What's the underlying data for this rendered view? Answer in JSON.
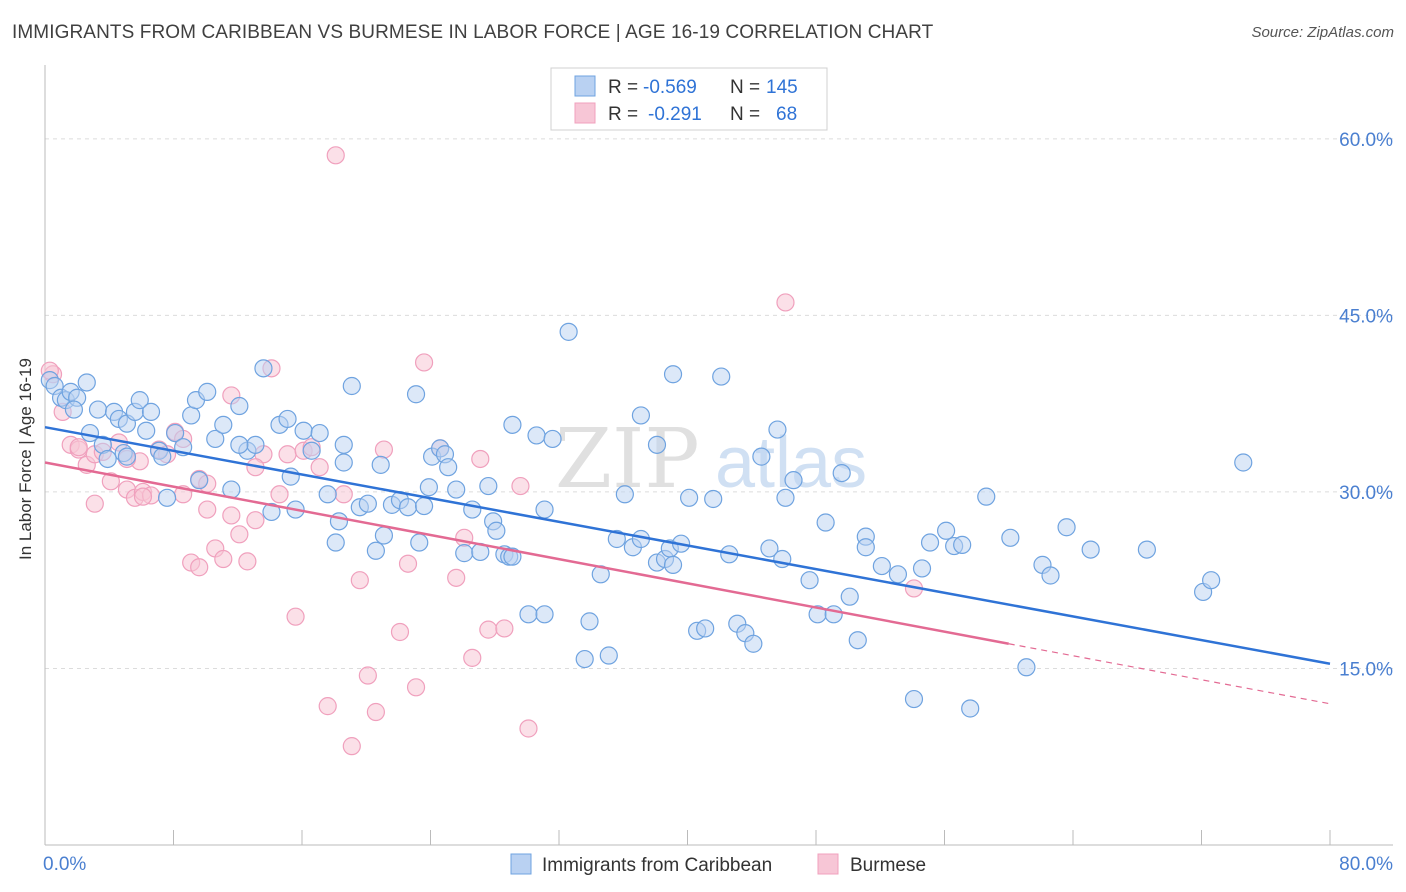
{
  "title": "IMMIGRANTS FROM CARIBBEAN VS BURMESE IN LABOR FORCE | AGE 16-19 CORRELATION CHART",
  "source": "Source: ZipAtlas.com",
  "watermark": "ZIPatlas",
  "colors": {
    "blue": "#6fa3e0",
    "blue_line": "#2f73d6",
    "pink": "#f0a0bd",
    "pink_line": "#e36a93",
    "tick_text": "#4a7fd0"
  },
  "legend": {
    "row1": {
      "r_label": "R =",
      "r_value": "-0.569",
      "n_label": "N =",
      "n_value": "145"
    },
    "row2": {
      "r_label": "R =",
      "r_value": "-0.291",
      "n_label": "N =",
      "n_value": "68"
    }
  },
  "bottom_legend": {
    "blue": "Immigrants from Caribbean",
    "pink": "Burmese"
  },
  "chart_data": {
    "type": "scatter",
    "title": "IMMIGRANTS FROM CARIBBEAN VS BURMESE IN LABOR FORCE | AGE 16-19 CORRELATION CHART",
    "xlabel": "",
    "ylabel": "In Labor Force | Age 16-19",
    "xlim": [
      0,
      80
    ],
    "ylim": [
      0,
      65
    ],
    "x_tick_labels": [
      "0.0%",
      "80.0%"
    ],
    "y_ticks": [
      15,
      30,
      45,
      60
    ],
    "y_tick_labels": [
      "15.0%",
      "30.0%",
      "45.0%",
      "60.0%"
    ],
    "grid": true,
    "legend_position": "top-center",
    "series": [
      {
        "name": "Immigrants from Caribbean",
        "r": -0.569,
        "n": 145,
        "trend": {
          "x0": 0,
          "y0": 35.5,
          "x1": 80,
          "y1": 15.4
        },
        "points": [
          [
            0.3,
            39.5
          ],
          [
            0.6,
            39
          ],
          [
            1,
            38
          ],
          [
            1.3,
            37.8
          ],
          [
            1.6,
            38.5
          ],
          [
            2,
            38
          ],
          [
            2.6,
            39.3
          ],
          [
            3.3,
            37
          ],
          [
            1.8,
            37
          ],
          [
            2.8,
            35
          ],
          [
            3.6,
            34
          ],
          [
            4.3,
            36.8
          ],
          [
            4.6,
            36.2
          ],
          [
            5.1,
            35.8
          ],
          [
            5.6,
            36.8
          ],
          [
            5.9,
            37.8
          ],
          [
            6.3,
            35.2
          ],
          [
            6.6,
            36.8
          ],
          [
            7.1,
            33.5
          ],
          [
            7.3,
            33
          ],
          [
            3.9,
            32.8
          ],
          [
            4.9,
            33.3
          ],
          [
            7.6,
            29.5
          ],
          [
            8.1,
            35
          ],
          [
            8.6,
            33.8
          ],
          [
            9.1,
            36.5
          ],
          [
            9.4,
            37.8
          ],
          [
            10.1,
            38.5
          ],
          [
            9.6,
            31
          ],
          [
            10.6,
            34.5
          ],
          [
            11.1,
            35.7
          ],
          [
            11.6,
            30.2
          ],
          [
            12.1,
            37.3
          ],
          [
            12.6,
            33.5
          ],
          [
            13.1,
            34
          ],
          [
            13.6,
            40.5
          ],
          [
            14.1,
            28.3
          ],
          [
            14.6,
            35.7
          ],
          [
            15.1,
            36.2
          ],
          [
            15.3,
            31.3
          ],
          [
            15.6,
            28.5
          ],
          [
            16.1,
            35.2
          ],
          [
            16.6,
            33.5
          ],
          [
            17.1,
            35
          ],
          [
            17.6,
            29.8
          ],
          [
            18.1,
            25.7
          ],
          [
            18.3,
            27.5
          ],
          [
            18.6,
            34
          ],
          [
            19.1,
            39
          ],
          [
            19.6,
            28.7
          ],
          [
            20.1,
            29
          ],
          [
            20.6,
            25
          ],
          [
            20.9,
            32.3
          ],
          [
            21.1,
            26.3
          ],
          [
            21.6,
            28.9
          ],
          [
            22.1,
            29.3
          ],
          [
            22.6,
            28.7
          ],
          [
            23.1,
            38.3
          ],
          [
            23.3,
            25.7
          ],
          [
            23.9,
            30.4
          ],
          [
            24.1,
            33
          ],
          [
            24.6,
            33.7
          ],
          [
            24.9,
            33.2
          ],
          [
            25.1,
            32.1
          ],
          [
            25.6,
            30.2
          ],
          [
            26.1,
            24.8
          ],
          [
            26.6,
            28.5
          ],
          [
            27.1,
            24.9
          ],
          [
            27.6,
            30.5
          ],
          [
            27.9,
            27.5
          ],
          [
            28.1,
            26.7
          ],
          [
            28.6,
            24.7
          ],
          [
            28.9,
            24.5
          ],
          [
            29.1,
            35.7
          ],
          [
            30.1,
            19.6
          ],
          [
            30.6,
            34.8
          ],
          [
            31.1,
            28.5
          ],
          [
            31.6,
            34.5
          ],
          [
            32.6,
            43.6
          ],
          [
            33.6,
            15.8
          ],
          [
            33.9,
            19
          ],
          [
            34.6,
            23
          ],
          [
            35.1,
            16.1
          ],
          [
            35.6,
            26
          ],
          [
            36.1,
            29.8
          ],
          [
            36.6,
            25.3
          ],
          [
            37.1,
            26
          ],
          [
            38.1,
            24
          ],
          [
            38.6,
            24.3
          ],
          [
            38.9,
            25.2
          ],
          [
            39.1,
            23.8
          ],
          [
            39.6,
            25.6
          ],
          [
            40.1,
            29.5
          ],
          [
            40.6,
            18.2
          ],
          [
            41.1,
            18.4
          ],
          [
            41.6,
            29.4
          ],
          [
            42.1,
            39.8
          ],
          [
            42.6,
            24.7
          ],
          [
            43.1,
            18.8
          ],
          [
            43.6,
            18
          ],
          [
            44.1,
            17.1
          ],
          [
            44.6,
            33
          ],
          [
            45.1,
            25.2
          ],
          [
            45.6,
            35.3
          ],
          [
            45.9,
            24.3
          ],
          [
            46.6,
            31
          ],
          [
            47.6,
            22.5
          ],
          [
            48.1,
            19.6
          ],
          [
            48.6,
            27.4
          ],
          [
            49.1,
            19.6
          ],
          [
            49.6,
            31.6
          ],
          [
            50.1,
            21.1
          ],
          [
            50.6,
            17.4
          ],
          [
            51.1,
            26.2
          ],
          [
            52.1,
            23.7
          ],
          [
            53.1,
            23
          ],
          [
            54.1,
            12.4
          ],
          [
            54.6,
            23.5
          ],
          [
            55.1,
            25.7
          ],
          [
            56.1,
            26.7
          ],
          [
            56.6,
            25.4
          ],
          [
            57.1,
            25.5
          ],
          [
            57.6,
            11.6
          ],
          [
            58.6,
            29.6
          ],
          [
            60.1,
            26.1
          ],
          [
            61.1,
            15.1
          ],
          [
            62.1,
            23.8
          ],
          [
            62.6,
            22.9
          ],
          [
            63.6,
            27
          ],
          [
            65.1,
            25.1
          ],
          [
            68.6,
            25.1
          ],
          [
            72.1,
            21.5
          ],
          [
            72.6,
            22.5
          ],
          [
            74.6,
            32.5
          ],
          [
            51.1,
            25.3
          ],
          [
            38.1,
            34
          ],
          [
            39.1,
            40
          ],
          [
            37.1,
            36.5
          ],
          [
            29.1,
            24.5
          ],
          [
            23.6,
            28.8
          ],
          [
            5.1,
            33
          ],
          [
            12.1,
            34
          ],
          [
            18.6,
            32.5
          ],
          [
            31.1,
            19.6
          ],
          [
            46.1,
            29.5
          ]
        ]
      },
      {
        "name": "Burmese",
        "r": -0.291,
        "n": 68,
        "trend": {
          "x0": 0,
          "y0": 32.5,
          "x1": 60,
          "y1": 17.1
        },
        "trend_dashed": {
          "x0": 60,
          "y0": 17.1,
          "x1": 80,
          "y1": 12
        },
        "points": [
          [
            0.5,
            40
          ],
          [
            1.1,
            36.8
          ],
          [
            1.6,
            34
          ],
          [
            2.1,
            33.6
          ],
          [
            2.6,
            32.3
          ],
          [
            3.1,
            33.2
          ],
          [
            3.1,
            29
          ],
          [
            3.6,
            33.4
          ],
          [
            4.1,
            30.9
          ],
          [
            4.6,
            34.2
          ],
          [
            5.1,
            30.2
          ],
          [
            5.6,
            29.5
          ],
          [
            5.9,
            32.6
          ],
          [
            6.1,
            30
          ],
          [
            6.6,
            29.7
          ],
          [
            7.1,
            33.6
          ],
          [
            7.6,
            33.2
          ],
          [
            8.1,
            35.1
          ],
          [
            8.6,
            34.5
          ],
          [
            8.6,
            29.8
          ],
          [
            9.1,
            24
          ],
          [
            9.6,
            31.1
          ],
          [
            10.1,
            30.7
          ],
          [
            10.1,
            28.5
          ],
          [
            10.6,
            25.2
          ],
          [
            11.1,
            24.3
          ],
          [
            11.6,
            28
          ],
          [
            11.6,
            38.2
          ],
          [
            12.1,
            26.4
          ],
          [
            12.6,
            24.1
          ],
          [
            13.1,
            27.6
          ],
          [
            13.6,
            33.2
          ],
          [
            14.1,
            40.5
          ],
          [
            14.6,
            29.8
          ],
          [
            15.1,
            33.2
          ],
          [
            15.6,
            19.4
          ],
          [
            16.1,
            33.5
          ],
          [
            16.6,
            33.8
          ],
          [
            17.1,
            32.1
          ],
          [
            17.6,
            11.8
          ],
          [
            18.1,
            58.6
          ],
          [
            18.6,
            29.8
          ],
          [
            19.1,
            8.4
          ],
          [
            19.6,
            22.5
          ],
          [
            20.1,
            14.4
          ],
          [
            20.6,
            11.3
          ],
          [
            21.1,
            33.6
          ],
          [
            22.1,
            18.1
          ],
          [
            22.6,
            23.9
          ],
          [
            23.1,
            13.4
          ],
          [
            23.6,
            41
          ],
          [
            24.6,
            33.7
          ],
          [
            25.6,
            22.7
          ],
          [
            26.1,
            26.1
          ],
          [
            26.6,
            15.9
          ],
          [
            27.1,
            32.8
          ],
          [
            27.6,
            18.3
          ],
          [
            28.6,
            18.4
          ],
          [
            29.6,
            30.5
          ],
          [
            30.1,
            9.9
          ],
          [
            46.1,
            46.1
          ],
          [
            54.1,
            21.8
          ],
          [
            0.3,
            40.3
          ],
          [
            9.6,
            23.6
          ],
          [
            5.1,
            32.8
          ],
          [
            13.1,
            32.1
          ],
          [
            6.1,
            29.6
          ],
          [
            2.1,
            33.8
          ]
        ]
      }
    ]
  }
}
